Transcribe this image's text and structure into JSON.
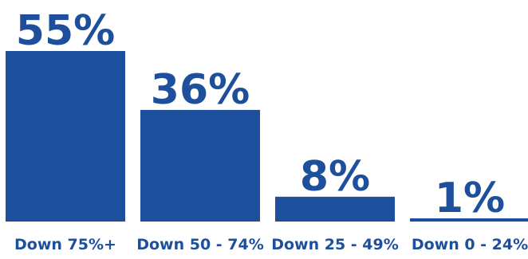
{
  "chart_data": {
    "type": "bar",
    "categories": [
      "Down 75%+",
      "Down 50 - 74%",
      "Down 25 - 49%",
      "Down 0 - 24%"
    ],
    "values": [
      55,
      36,
      8,
      1
    ],
    "value_labels": [
      "55%",
      "36%",
      "8%",
      "1%"
    ],
    "unit": "%",
    "title": "",
    "xlabel": "",
    "ylabel": "",
    "ylim": [
      0,
      55
    ],
    "grid": false,
    "legend": "none"
  },
  "colors": {
    "bar": "#1d4f9c",
    "text": "#1d4f9c",
    "background": "#ffffff"
  }
}
